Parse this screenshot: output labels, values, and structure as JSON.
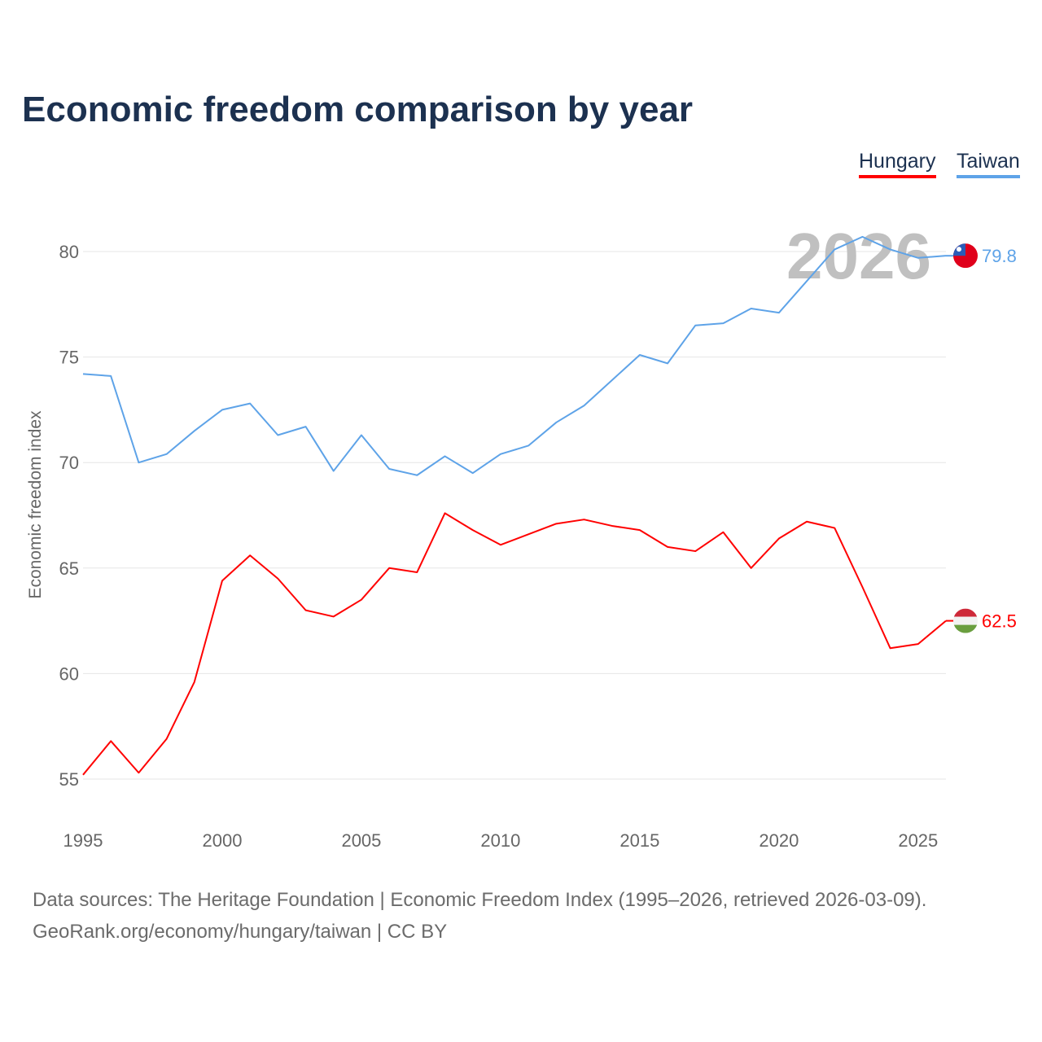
{
  "title": "Economic freedom comparison by year",
  "watermark_year": "2026",
  "footer": {
    "line1": "Data sources: The Heritage Foundation | Economic Freedom Index (1995–2026, retrieved 2026-03-09).",
    "line2": "GeoRank.org/economy/hungary/taiwan | CC BY"
  },
  "chart_data": {
    "type": "line",
    "title": "Economic freedom comparison by year",
    "xlabel": "",
    "ylabel": "Economic freedom index",
    "xlim": [
      1995,
      2026
    ],
    "ylim": [
      55,
      80
    ],
    "xticks": [
      1995,
      2000,
      2005,
      2010,
      2015,
      2020,
      2025
    ],
    "yticks": [
      55,
      60,
      65,
      70,
      75,
      80
    ],
    "grid": true,
    "legend": "top-right",
    "x": [
      1995,
      1996,
      1997,
      1998,
      1999,
      2000,
      2001,
      2002,
      2003,
      2004,
      2005,
      2006,
      2007,
      2008,
      2009,
      2010,
      2011,
      2012,
      2013,
      2014,
      2015,
      2016,
      2017,
      2018,
      2019,
      2020,
      2021,
      2022,
      2023,
      2024,
      2025,
      2026
    ],
    "series": [
      {
        "name": "Hungary",
        "color": "#ff0000",
        "end_label": "62.5",
        "icon": "hungary-flag-icon",
        "values": [
          55.2,
          56.8,
          55.3,
          56.9,
          59.6,
          64.4,
          65.6,
          64.5,
          63.0,
          62.7,
          63.5,
          65.0,
          64.8,
          67.6,
          66.8,
          66.1,
          66.6,
          67.1,
          67.3,
          67.0,
          66.8,
          66.0,
          65.8,
          66.7,
          65.0,
          66.4,
          67.2,
          66.9,
          64.1,
          61.2,
          61.4,
          62.5
        ]
      },
      {
        "name": "Taiwan",
        "color": "#5ea3e8",
        "end_label": "79.8",
        "icon": "taiwan-flag-icon",
        "values": [
          74.2,
          74.1,
          70.0,
          70.4,
          71.5,
          72.5,
          72.8,
          71.3,
          71.7,
          69.6,
          71.3,
          69.7,
          69.4,
          70.3,
          69.5,
          70.4,
          70.8,
          71.9,
          72.7,
          73.9,
          75.1,
          74.7,
          76.5,
          76.6,
          77.3,
          77.1,
          78.6,
          80.1,
          80.7,
          80.1,
          79.7,
          79.8
        ]
      }
    ]
  }
}
